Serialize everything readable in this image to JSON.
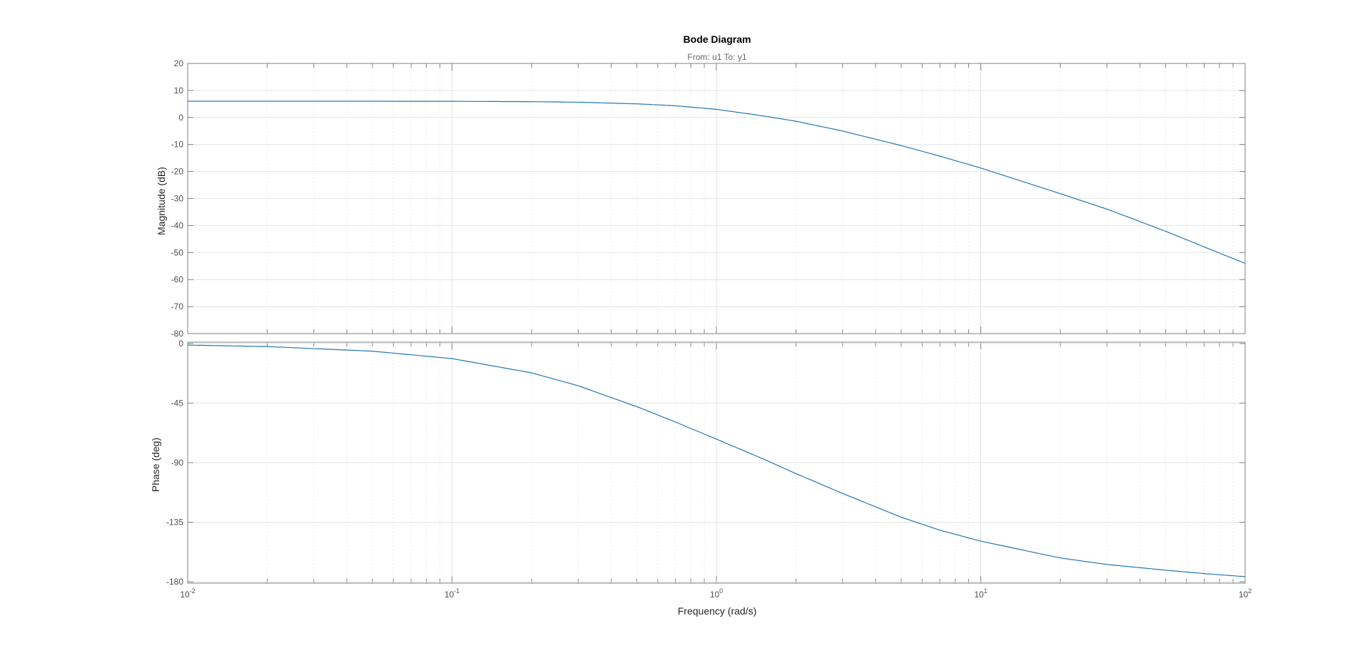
{
  "title": "Bode Diagram",
  "subtitle": "From: u1  To: y1",
  "colors": {
    "line": "#1f77b4",
    "axes": "#808080",
    "grid": "#e3e3e3",
    "minor_grid": "#ededed",
    "text": "#4d4d4d",
    "title": "#000000"
  },
  "chart_data": [
    {
      "type": "line",
      "panel": "magnitude",
      "ylabel": "Magnitude (dB)",
      "xscale": "log",
      "xlim": [
        0.01,
        100
      ],
      "ylim": [
        -80,
        20
      ],
      "yticks": [
        20,
        10,
        0,
        -10,
        -20,
        -30,
        -40,
        -50,
        -60,
        -70,
        -80
      ],
      "grid": true,
      "series": [
        {
          "x": [
            0.01,
            0.02,
            0.05,
            0.1,
            0.2,
            0.3,
            0.5,
            0.7,
            1,
            1.5,
            2,
            3,
            5,
            7,
            10,
            20,
            30,
            50,
            70,
            100
          ],
          "values": [
            6.02,
            6.02,
            6.01,
            5.98,
            5.85,
            5.66,
            5.05,
            4.35,
            3.01,
            0.6,
            -1.4,
            -5.0,
            -10.4,
            -14.3,
            -18.7,
            -28.2,
            -33.9,
            -42.1,
            -47.9,
            -54.0
          ]
        }
      ]
    },
    {
      "type": "line",
      "panel": "phase",
      "ylabel": "Phase (deg)",
      "xlabel": "Frequency  (rad/s)",
      "xscale": "log",
      "xlim": [
        0.01,
        100
      ],
      "ylim": [
        -181,
        1
      ],
      "yticks": [
        0,
        -45,
        -90,
        -135,
        -180
      ],
      "xticks": [
        {
          "base": "10",
          "exp": "-2",
          "value": 0.01
        },
        {
          "base": "10",
          "exp": "-1",
          "value": 0.1
        },
        {
          "base": "10",
          "exp": "0",
          "value": 1
        },
        {
          "base": "10",
          "exp": "1",
          "value": 10
        },
        {
          "base": "10",
          "exp": "2",
          "value": 100
        }
      ],
      "grid": true,
      "series": [
        {
          "x": [
            0.01,
            0.02,
            0.05,
            0.1,
            0.2,
            0.3,
            0.5,
            0.7,
            1,
            1.5,
            2,
            3,
            5,
            7,
            10,
            20,
            30,
            50,
            70,
            100
          ],
          "values": [
            -1.2,
            -2.3,
            -5.8,
            -11.4,
            -22.2,
            -31.9,
            -47.7,
            -59.3,
            -72.2,
            -87.1,
            -98.3,
            -113.2,
            -131.2,
            -141.0,
            -149.3,
            -162.0,
            -166.9,
            -171.2,
            -173.8,
            -176.1
          ]
        }
      ]
    }
  ]
}
